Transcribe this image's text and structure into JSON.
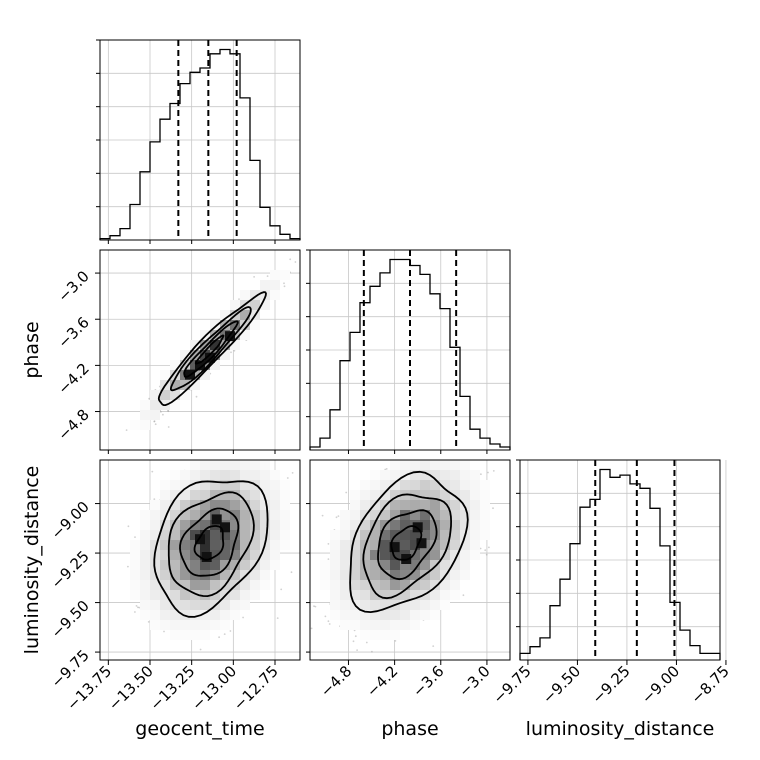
{
  "chart_data": {
    "type": "corner",
    "parameters": [
      "geocent_time",
      "phase",
      "luminosity_distance"
    ],
    "axes": {
      "geocent_time": {
        "label": "geocent_time",
        "range": [
          -13.8,
          -12.6
        ],
        "ticks": [
          "−13.75",
          "−13.50",
          "−13.25",
          "−13.00",
          "−12.75"
        ],
        "tick_values": [
          -13.75,
          -13.5,
          -13.25,
          -13.0,
          -12.75
        ]
      },
      "phase": {
        "label": "phase",
        "range": [
          -5.3,
          -2.7
        ],
        "ticks": [
          "−4.8",
          "−4.2",
          "−3.6",
          "−3.0"
        ],
        "tick_values": [
          -4.8,
          -4.2,
          -3.6,
          -3.0
        ]
      },
      "luminosity_distance": {
        "label": "luminosity_distance",
        "range": [
          -9.79,
          -8.78
        ],
        "ticks": [
          "−9.75",
          "−9.50",
          "−9.25",
          "−9.00",
          "−8.75"
        ],
        "tick_values": [
          -9.75,
          -9.5,
          -9.25,
          -9.0,
          -8.75
        ]
      }
    },
    "histograms": [
      {
        "param": "geocent_time",
        "bin_edges": [
          -13.8,
          -13.74,
          -13.68,
          -13.62,
          -13.56,
          -13.5,
          -13.44,
          -13.38,
          -13.32,
          -13.26,
          -13.2,
          -13.14,
          -13.08,
          -13.02,
          -12.96,
          -12.9,
          -12.84,
          -12.78,
          -12.72,
          -12.66,
          -12.6
        ],
        "counts": [
          1,
          3,
          8,
          25,
          48,
          69,
          85,
          96,
          110,
          118,
          121,
          131,
          134,
          131,
          100,
          56,
          23,
          10,
          4,
          1
        ],
        "quantiles": [
          -13.33,
          -13.15,
          -12.98
        ]
      },
      {
        "param": "phase",
        "bin_edges": [
          -5.3,
          -5.17,
          -5.04,
          -4.91,
          -4.78,
          -4.65,
          -4.52,
          -4.39,
          -4.26,
          -4.13,
          -4.0,
          -3.87,
          -3.74,
          -3.61,
          -3.48,
          -3.35,
          -3.22,
          -3.09,
          -2.96,
          -2.83,
          -2.7
        ],
        "counts": [
          2,
          8,
          27,
          60,
          79,
          99,
          110,
          119,
          128,
          128,
          124,
          118,
          105,
          95,
          69,
          36,
          14,
          8,
          4,
          2
        ],
        "quantiles": [
          -4.6,
          -4.0,
          -3.4
        ]
      },
      {
        "param": "luminosity_distance",
        "bin_edges": [
          -9.79,
          -9.7395,
          -9.689,
          -9.6385,
          -9.588,
          -9.5375,
          -9.487,
          -9.4365,
          -9.386,
          -9.3355,
          -9.285,
          -9.2345,
          -9.184,
          -9.1335,
          -9.083,
          -9.0325,
          -8.982,
          -8.9315,
          -8.881,
          -8.8305,
          -8.78
        ],
        "counts": [
          6,
          12,
          20,
          49,
          73,
          105,
          138,
          145,
          172,
          165,
          167,
          159,
          155,
          137,
          103,
          52,
          27,
          13,
          6,
          6
        ],
        "quantiles": [
          -9.41,
          -9.2,
          -9.01
        ]
      }
    ],
    "joint": [
      {
        "x": "geocent_time",
        "y": "phase",
        "correlation": 0.95,
        "mean": [
          -13.14,
          -4.0
        ],
        "sd": [
          0.16,
          0.36
        ],
        "hot_cells": [
          [
            -13.14,
            -4.1
          ],
          [
            -13.02,
            -3.82
          ],
          [
            -13.26,
            -4.32
          ],
          [
            -13.2,
            -4.2
          ]
        ]
      },
      {
        "x": "geocent_time",
        "y": "luminosity_distance",
        "correlation": 0.3,
        "mean": [
          -13.14,
          -9.2
        ],
        "sd": [
          0.17,
          0.17
        ],
        "hot_cells": [
          [
            -13.2,
            -9.18
          ],
          [
            -13.1,
            -9.08
          ],
          [
            -13.16,
            -9.27
          ],
          [
            -13.05,
            -9.12
          ]
        ]
      },
      {
        "x": "phase",
        "y": "luminosity_distance",
        "correlation": 0.35,
        "mean": [
          -4.05,
          -9.2
        ],
        "sd": [
          0.38,
          0.17
        ],
        "hot_cells": [
          [
            -4.05,
            -9.28
          ],
          [
            -3.9,
            -9.12
          ],
          [
            -4.2,
            -9.22
          ],
          [
            -3.85,
            -9.2
          ]
        ]
      }
    ],
    "contour_levels_sigma": [
      0.5,
      1.0,
      1.5,
      2.0
    ]
  }
}
